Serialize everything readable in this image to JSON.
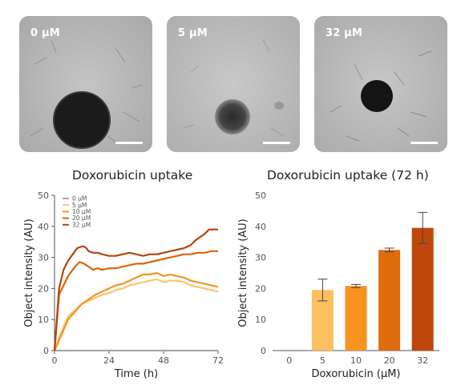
{
  "panels": [
    {
      "label": "0 µM"
    },
    {
      "label": "5 µM"
    },
    {
      "label": "32 µM"
    }
  ],
  "chart_data": [
    {
      "type": "line",
      "title": "Doxorubicin uptake",
      "xlabel": "Time (h)",
      "ylabel": "Object intensity (AU)",
      "xlim": [
        0,
        72
      ],
      "ylim": [
        0,
        50
      ],
      "xticks": [
        "0",
        "24",
        "48",
        "72"
      ],
      "yticks": [
        "0",
        "10",
        "20",
        "30",
        "40",
        "50"
      ],
      "legend_position": "top-left",
      "series": [
        {
          "name": "0 µM",
          "color": "#a6a6a6",
          "points": [
            [
              0,
              0
            ],
            [
              72,
              0
            ]
          ]
        },
        {
          "name": "5 µM",
          "color": "#f9c56b",
          "points": [
            [
              0,
              0
            ],
            [
              3,
              6
            ],
            [
              6,
              11
            ],
            [
              9,
              13
            ],
            [
              12,
              15
            ],
            [
              15,
              16
            ],
            [
              18,
              17
            ],
            [
              21,
              18
            ],
            [
              24,
              18.5
            ],
            [
              27,
              19.5
            ],
            [
              30,
              20
            ],
            [
              33,
              21
            ],
            [
              36,
              21.5
            ],
            [
              39,
              22
            ],
            [
              42,
              22.5
            ],
            [
              45,
              23
            ],
            [
              48,
              22
            ],
            [
              51,
              22.5
            ],
            [
              54,
              22.5
            ],
            [
              57,
              22
            ],
            [
              60,
              21
            ],
            [
              63,
              20.5
            ],
            [
              66,
              20
            ],
            [
              69,
              19.5
            ],
            [
              72,
              19
            ]
          ]
        },
        {
          "name": "10 µM",
          "color": "#f3941f",
          "points": [
            [
              0,
              0
            ],
            [
              3,
              5
            ],
            [
              6,
              10
            ],
            [
              9,
              12.5
            ],
            [
              12,
              15
            ],
            [
              15,
              16.5
            ],
            [
              18,
              18
            ],
            [
              21,
              19
            ],
            [
              24,
              20
            ],
            [
              27,
              21
            ],
            [
              30,
              21.5
            ],
            [
              33,
              22.5
            ],
            [
              36,
              23.5
            ],
            [
              39,
              24.5
            ],
            [
              42,
              24.5
            ],
            [
              45,
              25
            ],
            [
              48,
              24
            ],
            [
              51,
              24.5
            ],
            [
              54,
              24
            ],
            [
              57,
              23.5
            ],
            [
              60,
              22.5
            ],
            [
              63,
              22
            ],
            [
              66,
              21.5
            ],
            [
              69,
              21
            ],
            [
              72,
              20.5
            ]
          ]
        },
        {
          "name": "20 µM",
          "color": "#d9650b",
          "points": [
            [
              0,
              0
            ],
            [
              2,
              18
            ],
            [
              4,
              21
            ],
            [
              6,
              24
            ],
            [
              9,
              27
            ],
            [
              11,
              28.5
            ],
            [
              13,
              28
            ],
            [
              15,
              27
            ],
            [
              17,
              26
            ],
            [
              19,
              26.5
            ],
            [
              21,
              26
            ],
            [
              24,
              26.5
            ],
            [
              27,
              26.5
            ],
            [
              30,
              27
            ],
            [
              33,
              27.5
            ],
            [
              36,
              28
            ],
            [
              39,
              28
            ],
            [
              42,
              28.5
            ],
            [
              45,
              29
            ],
            [
              48,
              29.5
            ],
            [
              51,
              30
            ],
            [
              54,
              30.5
            ],
            [
              57,
              31
            ],
            [
              60,
              31
            ],
            [
              63,
              31.5
            ],
            [
              66,
              31.5
            ],
            [
              69,
              32
            ],
            [
              72,
              32
            ]
          ]
        },
        {
          "name": "32 µM",
          "color": "#b5440e",
          "points": [
            [
              0,
              0
            ],
            [
              2,
              20
            ],
            [
              4,
              26
            ],
            [
              6,
              29
            ],
            [
              8,
              31
            ],
            [
              10,
              33
            ],
            [
              12,
              33.5
            ],
            [
              13,
              33.5
            ],
            [
              14,
              33
            ],
            [
              15,
              32
            ],
            [
              17,
              31.5
            ],
            [
              19,
              31.5
            ],
            [
              21,
              31
            ],
            [
              24,
              30.5
            ],
            [
              27,
              30.5
            ],
            [
              30,
              31
            ],
            [
              33,
              31.5
            ],
            [
              36,
              31
            ],
            [
              39,
              30.5
            ],
            [
              42,
              31
            ],
            [
              45,
              31
            ],
            [
              48,
              31.5
            ],
            [
              51,
              32
            ],
            [
              54,
              32.5
            ],
            [
              57,
              33
            ],
            [
              60,
              34
            ],
            [
              62,
              35.5
            ],
            [
              64,
              36.5
            ],
            [
              66,
              37.5
            ],
            [
              68,
              39
            ],
            [
              70,
              39
            ],
            [
              72,
              39
            ]
          ]
        }
      ]
    },
    {
      "type": "bar",
      "title": "Doxorubicin uptake (72 h)",
      "xlabel": "Doxorubicin (µM)",
      "ylabel": "Object intensity (AU)",
      "categories": [
        "0",
        "5",
        "10",
        "20",
        "32"
      ],
      "values": [
        0,
        19.5,
        20.8,
        32.4,
        39.5
      ],
      "errors": [
        0,
        3.5,
        0.5,
        0.6,
        5
      ],
      "colors": [
        "#a6a6a6",
        "#fcc05e",
        "#f7931e",
        "#e06d0c",
        "#c0470c"
      ],
      "ylim": [
        0,
        50
      ],
      "yticks": [
        "0",
        "10",
        "20",
        "30",
        "40",
        "50"
      ]
    }
  ]
}
